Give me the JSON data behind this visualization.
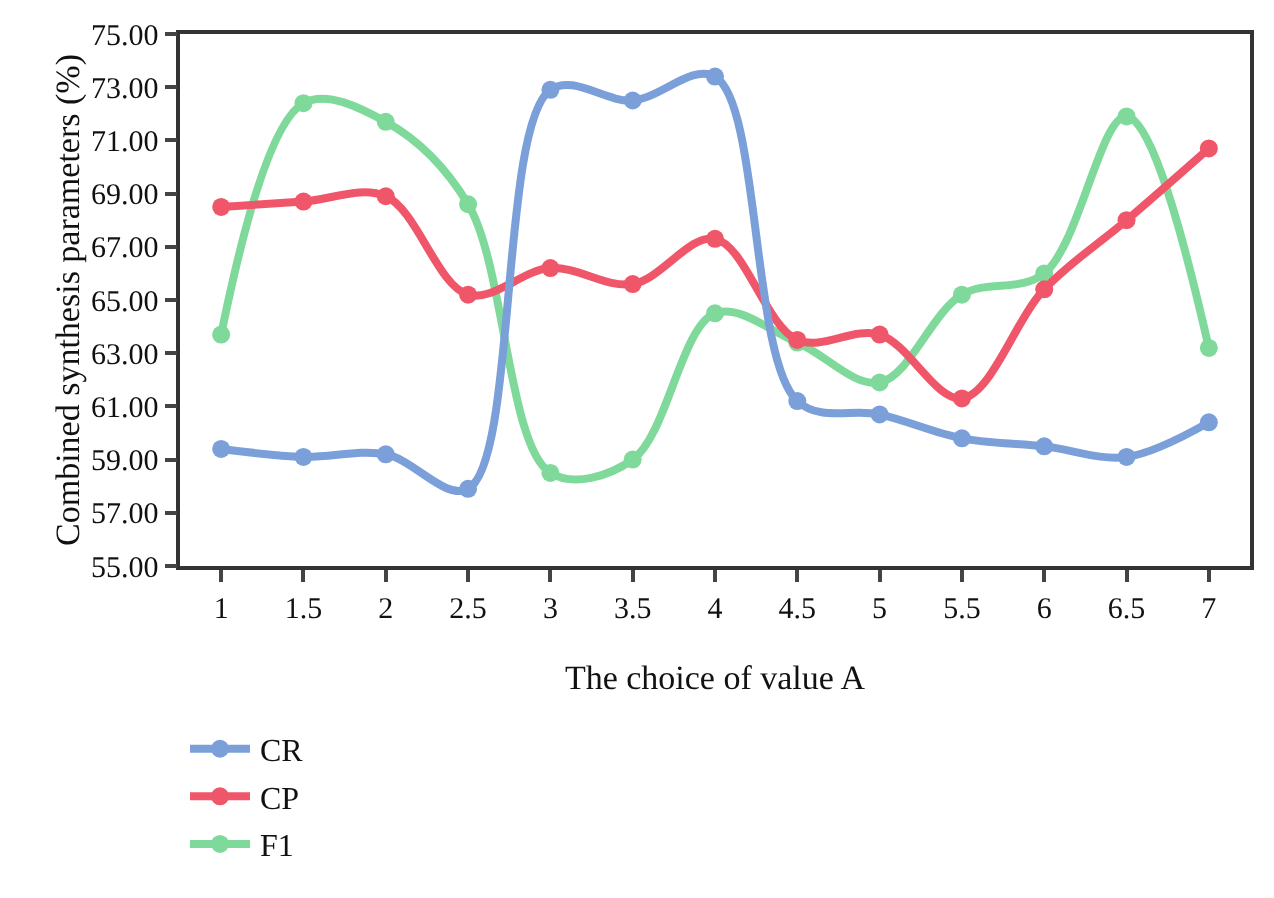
{
  "chart_data": {
    "type": "line",
    "xlabel": "The choice of value A",
    "ylabel": "Combined synthesis parameters (%)",
    "x": [
      1,
      1.5,
      2,
      2.5,
      3,
      3.5,
      4,
      4.5,
      5,
      5.5,
      6,
      6.5,
      7
    ],
    "series": [
      {
        "name": "CR",
        "color": "#7b9fd9",
        "values": [
          59.4,
          59.1,
          59.2,
          57.9,
          72.9,
          72.5,
          73.4,
          61.2,
          60.7,
          59.8,
          59.5,
          59.1,
          60.4
        ]
      },
      {
        "name": "CP",
        "color": "#f0566a",
        "values": [
          68.5,
          68.7,
          68.9,
          65.2,
          66.2,
          65.6,
          67.3,
          63.5,
          63.7,
          61.3,
          65.4,
          68.0,
          70.7
        ]
      },
      {
        "name": "F1",
        "color": "#7fd99a",
        "values": [
          63.7,
          72.4,
          71.7,
          68.6,
          58.5,
          59.0,
          64.5,
          63.4,
          61.9,
          65.2,
          66.0,
          71.9,
          63.2
        ]
      }
    ],
    "xlim": [
      0.75,
      7.25
    ],
    "xticks": [
      1,
      1.5,
      2,
      2.5,
      3,
      3.5,
      4,
      4.5,
      5,
      5.5,
      6,
      6.5,
      7
    ],
    "ylim": [
      55,
      75
    ],
    "yticks": [
      {
        "value": 55,
        "label": "55.00"
      },
      {
        "value": 57,
        "label": "57.00"
      },
      {
        "value": 59,
        "label": "59.00"
      },
      {
        "value": 61,
        "label": "61.00"
      },
      {
        "value": 63,
        "label": "63.00"
      },
      {
        "value": 65,
        "label": "65.00"
      },
      {
        "value": 67,
        "label": "67.00"
      },
      {
        "value": 69,
        "label": "69.00"
      },
      {
        "value": 71,
        "label": "71.00"
      },
      {
        "value": 73,
        "label": "73.00"
      },
      {
        "value": 75,
        "label": "75.00"
      }
    ],
    "grid": false,
    "legend": "bottom left",
    "marker": "circle",
    "line_style": "solid"
  }
}
